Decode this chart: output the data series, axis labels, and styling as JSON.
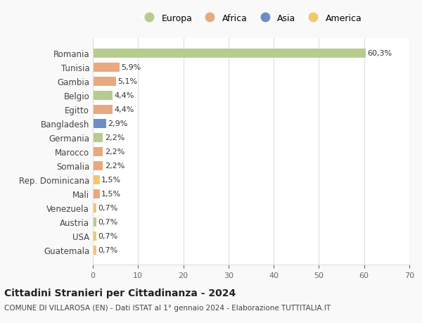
{
  "categories": [
    "Romania",
    "Tunisia",
    "Gambia",
    "Belgio",
    "Egitto",
    "Bangladesh",
    "Germania",
    "Marocco",
    "Somalia",
    "Rep. Dominicana",
    "Mali",
    "Venezuela",
    "Austria",
    "USA",
    "Guatemala"
  ],
  "values": [
    60.3,
    5.9,
    5.1,
    4.4,
    4.4,
    2.9,
    2.2,
    2.2,
    2.2,
    1.5,
    1.5,
    0.7,
    0.7,
    0.7,
    0.7
  ],
  "labels": [
    "60,3%",
    "5,9%",
    "5,1%",
    "4,4%",
    "4,4%",
    "2,9%",
    "2,2%",
    "2,2%",
    "2,2%",
    "1,5%",
    "1,5%",
    "0,7%",
    "0,7%",
    "0,7%",
    "0,7%"
  ],
  "continents": [
    "Europa",
    "Africa",
    "Africa",
    "Europa",
    "Africa",
    "Asia",
    "Europa",
    "Africa",
    "Africa",
    "America",
    "Africa",
    "America",
    "Europa",
    "America",
    "America"
  ],
  "colors": {
    "Europa": "#b5cc8e",
    "Africa": "#e8a97e",
    "Asia": "#6b8fc4",
    "America": "#f0c86e"
  },
  "legend_order": [
    "Europa",
    "Africa",
    "Asia",
    "America"
  ],
  "title": "Cittadini Stranieri per Cittadinanza - 2024",
  "subtitle": "COMUNE DI VILLAROSA (EN) - Dati ISTAT al 1° gennaio 2024 - Elaborazione TUTTITALIA.IT",
  "xlim": [
    0,
    70
  ],
  "xticks": [
    0,
    10,
    20,
    30,
    40,
    50,
    60,
    70
  ],
  "grid_color": "#dddddd",
  "bg_color": "#f9f9f9",
  "bar_bg_color": "#ffffff"
}
